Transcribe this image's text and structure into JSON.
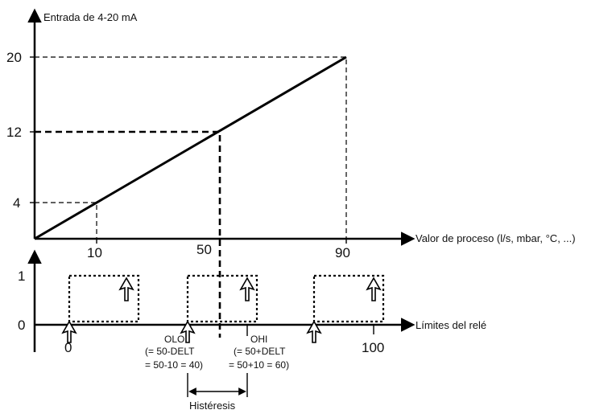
{
  "top_chart": {
    "y_axis_label": "Entrada de 4-20 mA",
    "x_axis_label": "Valor de proceso (l/s, mbar, °C, ...)",
    "y_ticks": [
      "20",
      "12",
      "4"
    ],
    "x_ticks": [
      "10",
      "50",
      "90"
    ]
  },
  "bottom_chart": {
    "x_axis_label": "Límites del relé",
    "y_ticks": [
      "1",
      "0"
    ],
    "x_ticks": [
      "0",
      "100"
    ],
    "olo": {
      "label": "OLO",
      "line1": "(= 50-DELT",
      "line2": "= 50-10 = 40)"
    },
    "ohi": {
      "label": "OHI",
      "line1": "(= 50+DELT",
      "line2": "= 50+10 = 60)"
    },
    "hysteresis_label": "Histéresis"
  },
  "chart_data": {
    "type": "line",
    "series": [
      {
        "x": [
          0,
          10,
          50,
          90
        ],
        "y": [
          0,
          4,
          12,
          20
        ]
      }
    ],
    "xlabel": "Valor de proceso (l/s, mbar, °C, ...)",
    "ylabel": "Entrada de 4-20 mA",
    "x_ticks": [
      10,
      50,
      90
    ],
    "y_ticks": [
      4,
      12,
      20
    ]
  }
}
